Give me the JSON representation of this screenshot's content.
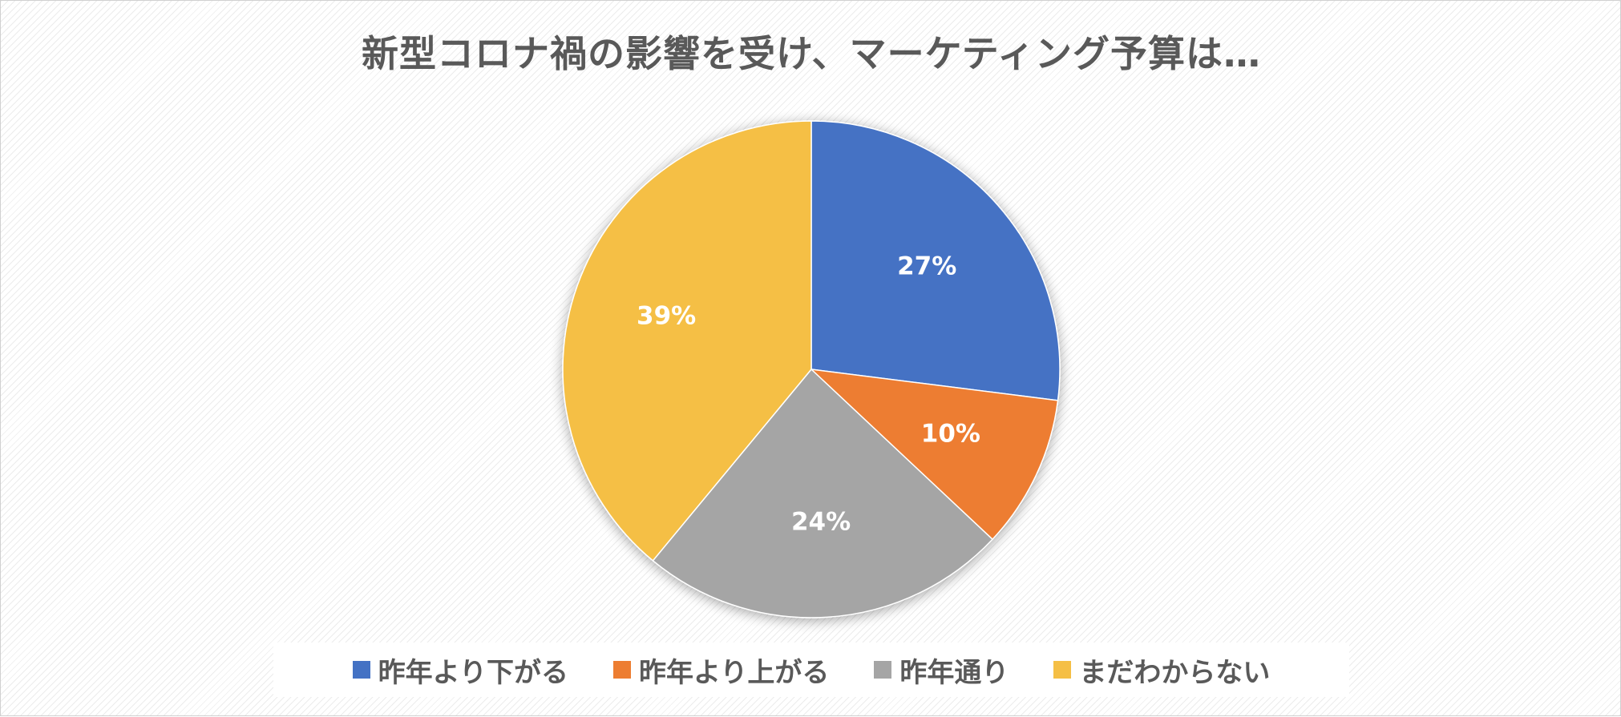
{
  "chart_data": {
    "type": "pie",
    "title": "新型コロナ禍の影響を受け、マーケティング予算は…",
    "slices": [
      {
        "name": "昨年より下がる",
        "value": 27,
        "label": "27%",
        "color": "#4472C4"
      },
      {
        "name": "昨年より上がる",
        "value": 10,
        "label": "10%",
        "color": "#ED7D31"
      },
      {
        "name": "昨年通り",
        "value": 24,
        "label": "24%",
        "color": "#A5A5A5"
      },
      {
        "name": "まだわからない",
        "value": 39,
        "label": "39%",
        "color": "#F5BF45"
      }
    ],
    "legend_position": "bottom"
  }
}
